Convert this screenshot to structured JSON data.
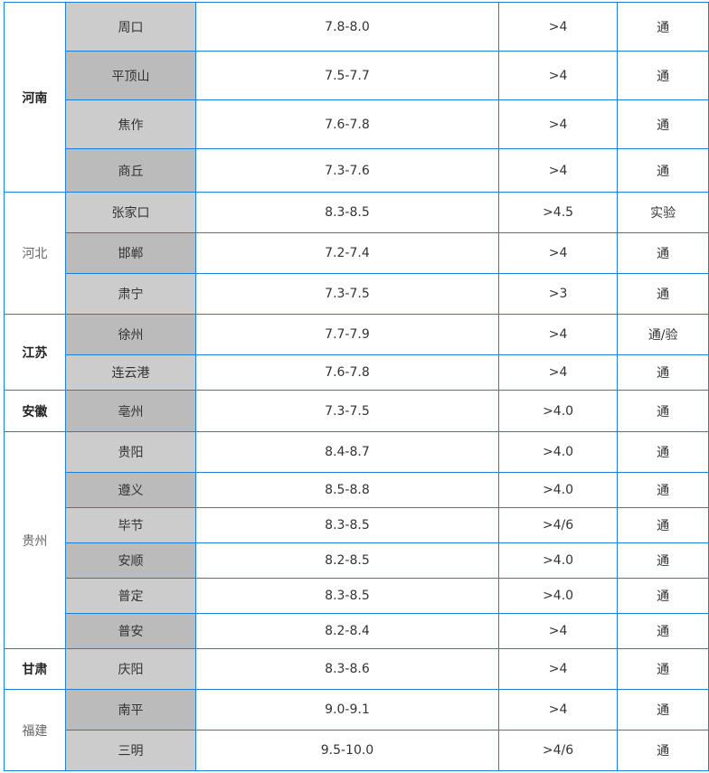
{
  "table": {
    "groups": [
      {
        "province": "河南",
        "bold": true,
        "rows": [
          {
            "city": "周口",
            "ph": "7.8-8.0",
            "value": ">4",
            "result": "通"
          },
          {
            "city": "平顶山",
            "ph": "7.5-7.7",
            "value": ">4",
            "result": "通"
          },
          {
            "city": "焦作",
            "ph": "7.6-7.8",
            "value": ">4",
            "result": "通"
          },
          {
            "city": "商丘",
            "ph": "7.3-7.6",
            "value": ">4",
            "result": "通"
          }
        ]
      },
      {
        "province": "河北",
        "bold": false,
        "rows": [
          {
            "city": "张家口",
            "ph": "8.3-8.5",
            "value": ">4.5",
            "result": "实验"
          },
          {
            "city": "邯郸",
            "ph": "7.2-7.4",
            "value": ">4",
            "result": "通"
          },
          {
            "city": "肃宁",
            "ph": "7.3-7.5",
            "value": ">3",
            "result": "通"
          }
        ]
      },
      {
        "province": "江苏",
        "bold": true,
        "rows": [
          {
            "city": "徐州",
            "ph": "7.7-7.9",
            "value": ">4",
            "result": "通/验"
          },
          {
            "city": "连云港",
            "ph": "7.6-7.8",
            "value": ">4",
            "result": "通"
          }
        ]
      },
      {
        "province": "安徽",
        "bold": true,
        "rows": [
          {
            "city": "亳州",
            "ph": "7.3-7.5",
            "value": ">4.0",
            "result": "通"
          }
        ]
      },
      {
        "province": "贵州",
        "bold": false,
        "rows": [
          {
            "city": "贵阳",
            "ph": "8.4-8.7",
            "value": ">4.0",
            "result": "通"
          },
          {
            "city": "遵义",
            "ph": "8.5-8.8",
            "value": ">4.0",
            "result": "通"
          },
          {
            "city": "毕节",
            "ph": "8.3-8.5",
            "value": ">4/6",
            "result": "通"
          },
          {
            "city": "安顺",
            "ph": "8.2-8.5",
            "value": ">4.0",
            "result": "通"
          },
          {
            "city": "普定",
            "ph": "8.3-8.5",
            "value": ">4.0",
            "result": "通"
          },
          {
            "city": "普安",
            "ph": "8.2-8.4",
            "value": ">4",
            "result": "通"
          }
        ]
      },
      {
        "province": "甘肃",
        "bold": true,
        "rows": [
          {
            "city": "庆阳",
            "ph": "8.3-8.6",
            "value": ">4",
            "result": "通"
          }
        ]
      },
      {
        "province": "福建",
        "bold": false,
        "rows": [
          {
            "city": "南平",
            "ph": "9.0-9.1",
            "value": ">4",
            "result": "通"
          },
          {
            "city": "三明",
            "ph": "9.5-10.0",
            "value": ">4/6",
            "result": "通"
          }
        ]
      }
    ]
  },
  "colors": {
    "border": "#1e7fd8",
    "city_light": "#cccccc",
    "city_dark": "#bbbbbb"
  }
}
